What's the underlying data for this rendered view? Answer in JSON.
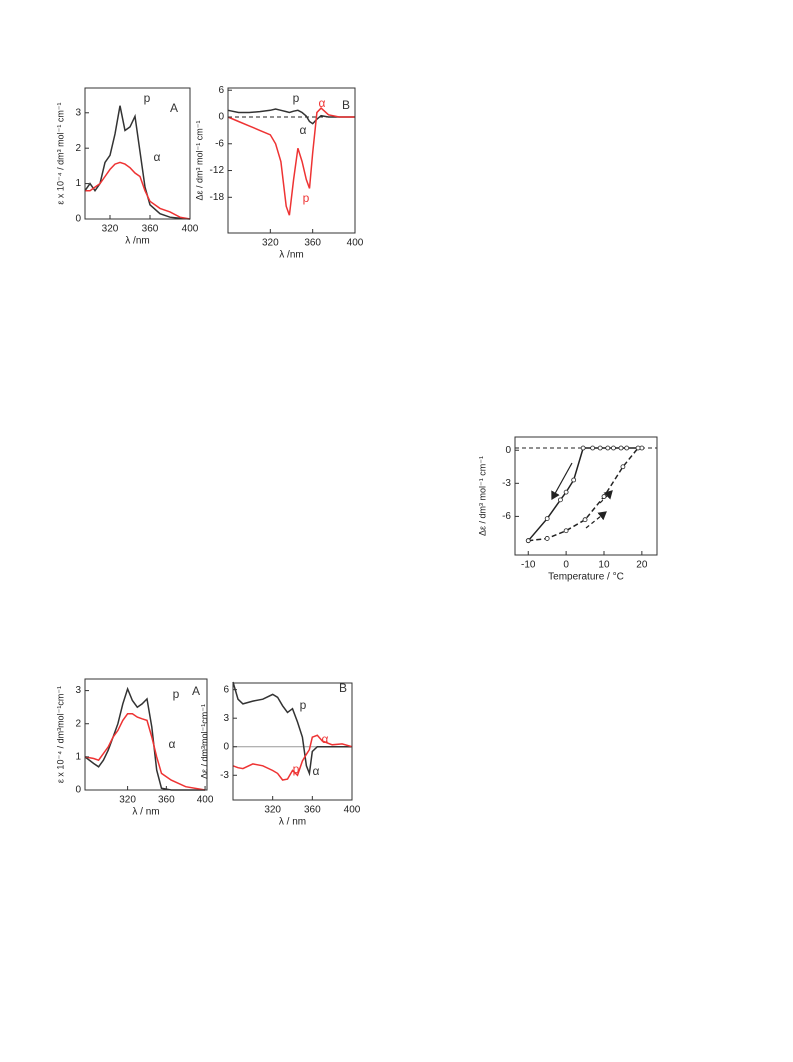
{
  "chart_data": [
    {
      "type": "line",
      "xlabel": "λ /nm",
      "ylabel": "ε x 10⁻⁴ / dm³ mol⁻¹ cm⁻¹",
      "x": [
        295,
        300,
        305,
        310,
        315,
        320,
        325,
        330,
        335,
        340,
        345,
        350,
        355,
        360,
        370,
        380,
        390,
        400
      ],
      "series": [
        {
          "color": "#333333",
          "values": [
            0.8,
            1.0,
            0.8,
            1.0,
            1.6,
            1.8,
            2.4,
            3.2,
            2.5,
            2.6,
            2.9,
            1.9,
            0.9,
            0.4,
            0.15,
            0.05,
            0.02,
            0
          ]
        },
        {
          "color": "#ee3333",
          "values": [
            0.8,
            0.8,
            0.9,
            1.0,
            1.2,
            1.4,
            1.55,
            1.6,
            1.55,
            1.45,
            1.3,
            1.2,
            0.8,
            0.5,
            0.3,
            0.2,
            0.05,
            0
          ]
        }
      ],
      "xlim": [
        295,
        400
      ],
      "xticks": [
        320,
        360,
        400
      ],
      "ylim": [
        0,
        3.7
      ],
      "yticks": [
        0,
        1,
        2,
        3
      ],
      "annotations": [
        {
          "text": "A",
          "color": "#333333"
        },
        {
          "text": "p",
          "color": "#333333"
        },
        {
          "text": "α",
          "color": "#333333"
        }
      ]
    },
    {
      "type": "line",
      "xlabel": "λ /nm",
      "ylabel": "Δε / dm³ mol⁻¹ cm⁻¹",
      "x": [
        280,
        290,
        300,
        310,
        320,
        325,
        330,
        335,
        338,
        342,
        346,
        350,
        354,
        357,
        360,
        364,
        368,
        375,
        385,
        400
      ],
      "series": [
        {
          "color": "#333333",
          "values": [
            1.5,
            1,
            1,
            1.2,
            1.5,
            1.8,
            1.5,
            1.2,
            1,
            1.3,
            1.5,
            1,
            0.2,
            -1,
            -1.5,
            -0.5,
            0.3,
            0,
            0,
            0
          ]
        },
        {
          "color": "#ee3333",
          "values": [
            0,
            -1,
            -2,
            -3,
            -4,
            -6,
            -10,
            -20,
            -22,
            -14,
            -7,
            -10,
            -14,
            -16,
            -8,
            1,
            2,
            0.5,
            0,
            0
          ]
        }
      ],
      "xlim": [
        280,
        400
      ],
      "xticks": [
        320,
        360,
        400
      ],
      "ylim": [
        -26,
        6.5
      ],
      "yticks": [
        6,
        0,
        -6,
        -12,
        -18
      ],
      "hline": 0,
      "hline_style": "dashed",
      "annotations": [
        {
          "text": "p",
          "color": "#333333"
        },
        {
          "text": "α",
          "color": "#ee3333"
        },
        {
          "text": "α",
          "color": "#333333"
        },
        {
          "text": "p",
          "color": "#ee3333"
        },
        {
          "text": "B",
          "color": "#333333"
        }
      ]
    },
    {
      "type": "line",
      "xlabel": "Temperature / °C",
      "ylabel": "Δε / dm³ mol⁻¹ cm⁻¹",
      "series": [
        {
          "color": "#222222",
          "style": "solid",
          "markers": true,
          "x": [
            -10,
            -5,
            -1.5,
            0,
            2,
            4.5,
            7,
            9,
            11,
            12.5,
            14.5,
            16,
            20
          ],
          "values": [
            -8.2,
            -6.2,
            -4.5,
            -3.8,
            -2.7,
            0.2,
            0.2,
            0.2,
            0.2,
            0.2,
            0.2,
            0.2,
            0.2
          ]
        },
        {
          "color": "#222222",
          "style": "dashed",
          "markers": true,
          "x": [
            -10,
            -5,
            0,
            5,
            10,
            15,
            19
          ],
          "values": [
            -8.2,
            -8,
            -7.3,
            -6.3,
            -4.2,
            -1.5,
            0.2
          ]
        }
      ],
      "xlim": [
        -13.5,
        24
      ],
      "xticks": [
        -10,
        0,
        10,
        20
      ],
      "ylim": [
        -9.5,
        1.2
      ],
      "yticks": [
        0,
        -3,
        -6
      ],
      "hline": 0.2,
      "hline_style": "dashed",
      "annotations": []
    },
    {
      "type": "line",
      "xlabel": "λ / nm",
      "ylabel": "ε x 10⁻⁴ / dm³mol⁻¹cm⁻¹",
      "x": [
        276,
        285,
        290,
        295,
        300,
        305,
        310,
        315,
        320,
        325,
        330,
        335,
        340,
        345,
        350,
        355,
        365,
        380,
        400
      ],
      "series": [
        {
          "color": "#333333",
          "values": [
            1.0,
            0.8,
            0.7,
            0.9,
            1.2,
            1.6,
            2.0,
            2.6,
            3.05,
            2.7,
            2.5,
            2.6,
            2.75,
            1.9,
            0.6,
            0.05,
            0,
            0,
            0
          ]
        },
        {
          "color": "#ee3333",
          "values": [
            1.0,
            0.95,
            0.9,
            1.1,
            1.3,
            1.6,
            1.8,
            2.1,
            2.3,
            2.3,
            2.2,
            2.15,
            2.1,
            1.6,
            1.0,
            0.5,
            0.3,
            0.1,
            0
          ]
        }
      ],
      "xlim": [
        276,
        402
      ],
      "xticks": [
        320,
        360,
        400
      ],
      "ylim": [
        0,
        3.35
      ],
      "yticks": [
        0,
        1,
        2,
        3
      ],
      "annotations": [
        {
          "text": "p",
          "color": "#333333"
        },
        {
          "text": "A",
          "color": "#333333"
        },
        {
          "text": "α",
          "color": "#333333"
        }
      ]
    },
    {
      "type": "line",
      "xlabel": "λ / nm",
      "ylabel": "Δε / dm³mol⁻¹cm⁻¹",
      "x": [
        280,
        285,
        290,
        300,
        310,
        320,
        325,
        330,
        335,
        340,
        345,
        350,
        354,
        357,
        360,
        365,
        370,
        380,
        390,
        400
      ],
      "series": [
        {
          "color": "#333333",
          "values": [
            6.8,
            5,
            4.5,
            4.8,
            5,
            5.5,
            5.2,
            4.3,
            3.6,
            4.0,
            2.6,
            1.0,
            -2,
            -2.8,
            -0.5,
            0,
            0,
            0,
            0,
            0
          ]
        },
        {
          "color": "#ee3333",
          "values": [
            -2,
            -2.2,
            -2.3,
            -1.8,
            -2,
            -2.5,
            -2.8,
            -3.5,
            -3.4,
            -2.5,
            -3,
            -1.5,
            -0.8,
            -0.3,
            1,
            1.2,
            0.6,
            0.2,
            0.3,
            0
          ]
        }
      ],
      "xlim": [
        280,
        400
      ],
      "xticks": [
        320,
        360,
        400
      ],
      "ylim": [
        -5.6,
        6.7
      ],
      "yticks": [
        6,
        3,
        0,
        -3
      ],
      "hline": 0,
      "hline_style": "solid",
      "annotations": [
        {
          "text": "B",
          "color": "#333333"
        },
        {
          "text": "p",
          "color": "#333333"
        },
        {
          "text": "α",
          "color": "#ee3333"
        },
        {
          "text": "p",
          "color": "#ee3333"
        },
        {
          "text": "α",
          "color": "#333333"
        }
      ]
    }
  ]
}
